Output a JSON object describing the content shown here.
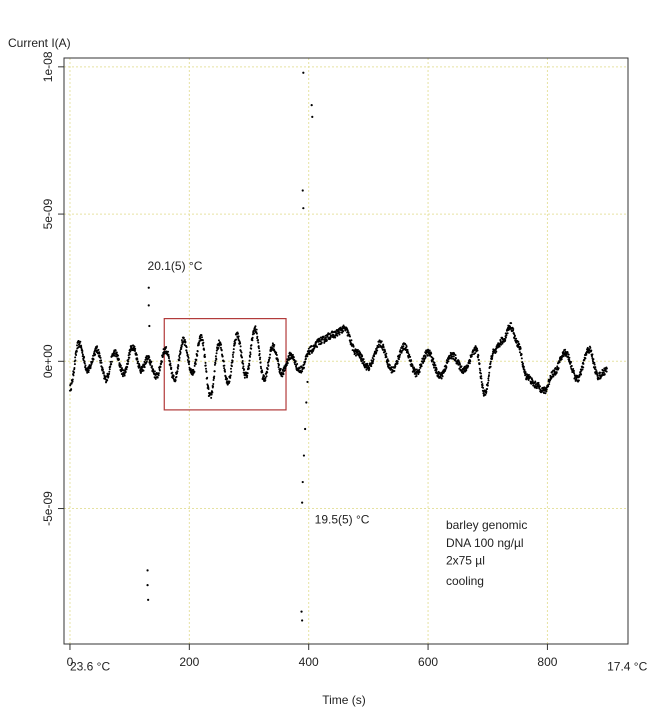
{
  "chart_data": {
    "type": "scatter",
    "title": "",
    "ylabel": "Current I(A)",
    "xlabel": "Time (s)",
    "xlim": [
      -10,
      935
    ],
    "ylim": [
      -9.6e-09,
      1.03e-08
    ],
    "x_ticks": [
      0,
      200,
      400,
      600,
      800
    ],
    "x_tick_labels": [
      "0",
      "200",
      "400",
      "600",
      "800"
    ],
    "y_ticks": [
      -5e-09,
      0,
      5e-09,
      1e-08
    ],
    "y_tick_labels": [
      "-5e-09",
      "0e+00",
      "5e-09",
      "1e-08"
    ],
    "grid": true,
    "series": [
      {
        "points": [
          [
            0,
            -9e-10
          ],
          [
            15,
            6e-10
          ],
          [
            30,
            -3e-10
          ],
          [
            45,
            4e-10
          ],
          [
            60,
            -6e-10
          ],
          [
            75,
            3e-10
          ],
          [
            90,
            -4e-10
          ],
          [
            105,
            5e-10
          ],
          [
            120,
            -3e-10
          ],
          [
            130,
            1e-10
          ],
          [
            145,
            -5e-10
          ],
          [
            160,
            4e-10
          ],
          [
            175,
            -6e-10
          ],
          [
            190,
            7e-10
          ],
          [
            205,
            -4e-10
          ],
          [
            220,
            8e-10
          ],
          [
            235,
            -1.2e-09
          ],
          [
            250,
            6e-10
          ],
          [
            265,
            -7e-10
          ],
          [
            280,
            9e-10
          ],
          [
            295,
            -5e-10
          ],
          [
            310,
            1.1e-09
          ],
          [
            325,
            -6e-10
          ],
          [
            340,
            5e-10
          ],
          [
            355,
            -4e-10
          ],
          [
            370,
            2e-10
          ],
          [
            385,
            -3e-10
          ],
          [
            405,
            4e-10
          ],
          [
            420,
            7e-10
          ],
          [
            440,
            9e-10
          ],
          [
            460,
            1.1e-09
          ],
          [
            480,
            3e-10
          ],
          [
            500,
            -2e-10
          ],
          [
            520,
            6e-10
          ],
          [
            540,
            -3e-10
          ],
          [
            560,
            5e-10
          ],
          [
            580,
            -4e-10
          ],
          [
            600,
            3e-10
          ],
          [
            620,
            -5e-10
          ],
          [
            640,
            2e-10
          ],
          [
            660,
            -3e-10
          ],
          [
            680,
            4e-10
          ],
          [
            695,
            -1.1e-09
          ],
          [
            710,
            3e-10
          ],
          [
            725,
            7e-10
          ],
          [
            738,
            1.2e-09
          ],
          [
            750,
            6e-10
          ],
          [
            765,
            -5e-10
          ],
          [
            780,
            -8e-10
          ],
          [
            795,
            -1e-09
          ],
          [
            810,
            -4e-10
          ],
          [
            830,
            3e-10
          ],
          [
            850,
            -6e-10
          ],
          [
            870,
            4e-10
          ],
          [
            885,
            -5e-10
          ],
          [
            900,
            -3e-10
          ]
        ],
        "points_extra": [
          [
            132,
            2.5e-09
          ],
          [
            132,
            1.9e-09
          ],
          [
            133,
            1.2e-09
          ],
          [
            130,
            -7.1e-09
          ],
          [
            130,
            -7.6e-09
          ],
          [
            131,
            -8.1e-09
          ],
          [
            391,
            9.8e-09
          ],
          [
            390,
            5.8e-09
          ],
          [
            391,
            5.2e-09
          ],
          [
            405,
            8.7e-09
          ],
          [
            406,
            8.3e-09
          ],
          [
            389,
            -4.8e-09
          ],
          [
            390,
            -4.1e-09
          ],
          [
            392,
            -3.2e-09
          ],
          [
            394,
            -2.3e-09
          ],
          [
            396,
            -1.4e-09
          ],
          [
            398,
            -7e-10
          ],
          [
            388,
            -8.5e-09
          ],
          [
            389,
            -8.8e-09
          ]
        ]
      }
    ],
    "box": {
      "x1": 158,
      "x2": 362,
      "y1": -1.65e-09,
      "y2": 1.45e-09,
      "color": "#b23a3a"
    },
    "annotations": [
      {
        "text": "20.1(5) °C",
        "x": 130,
        "y": 3.1e-09
      },
      {
        "text": "19.5(5) °C",
        "x": 410,
        "y": -5.5e-09
      },
      {
        "text": "barley genomic",
        "x": 630,
        "y": -5.7e-09
      },
      {
        "text": "DNA 100 ng/µl",
        "x": 630,
        "y": -6.3e-09
      },
      {
        "text": "2x75 µl",
        "x": 630,
        "y": -6.9e-09
      },
      {
        "text": "cooling",
        "x": 630,
        "y": -7.6e-09
      },
      {
        "text": "23.6 °C",
        "x": 0,
        "y": -1.05e-08
      },
      {
        "text": "17.4 °C",
        "x": 900,
        "y": -1.05e-08
      }
    ],
    "point_color": "#000000",
    "grid_color": "#e6e2a2"
  }
}
